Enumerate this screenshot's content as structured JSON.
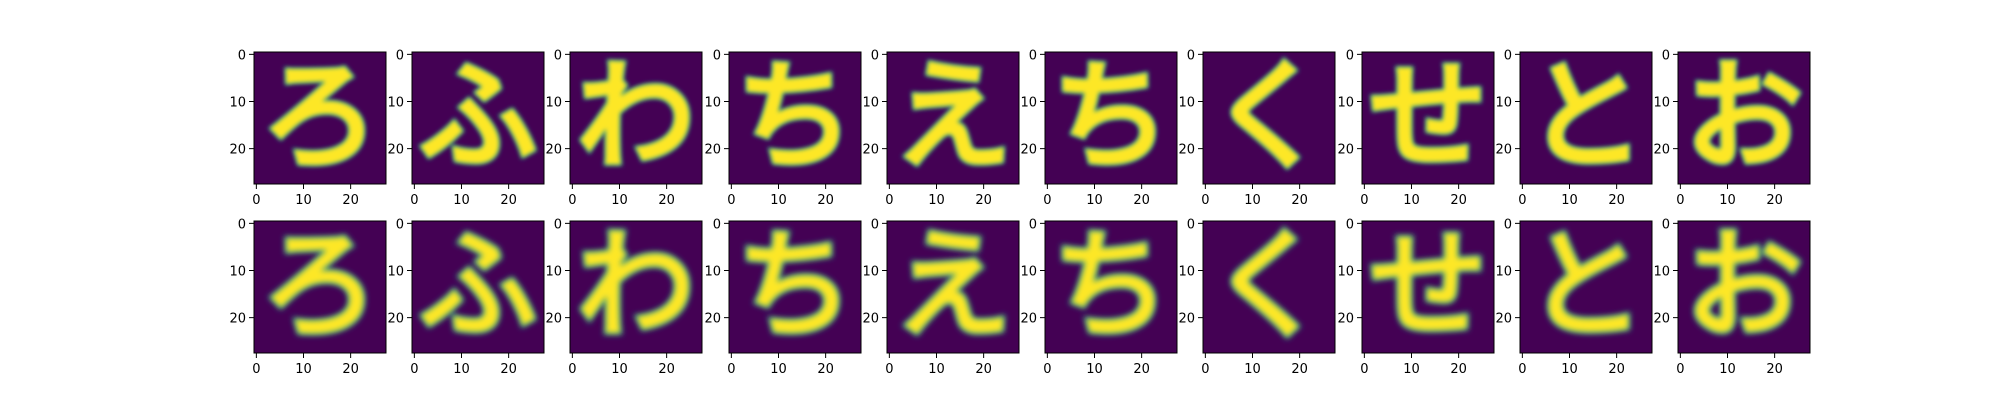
{
  "chart_data": {
    "type": "heatmap",
    "description_of_layout": "",
    "grid": {
      "rows": 2,
      "cols": 10
    },
    "row_roles": [
      "original",
      "reconstruction"
    ],
    "image_size": [
      28,
      28
    ],
    "colormap": "viridis",
    "value_range": [
      0,
      1
    ],
    "x_ticks": [
      "0",
      "10",
      "20"
    ],
    "y_ticks": [
      "0",
      "10",
      "20"
    ],
    "title": "",
    "xlabel": "",
    "ylabel": "",
    "characters": [
      "ろ",
      "ふ",
      "わ",
      "ち",
      "え",
      "ち",
      "く",
      "せ",
      "と",
      "お"
    ],
    "colors": {
      "background": "#ffffff",
      "dark": "#440154",
      "bright": "#fde725",
      "mid": "#21918c"
    }
  }
}
